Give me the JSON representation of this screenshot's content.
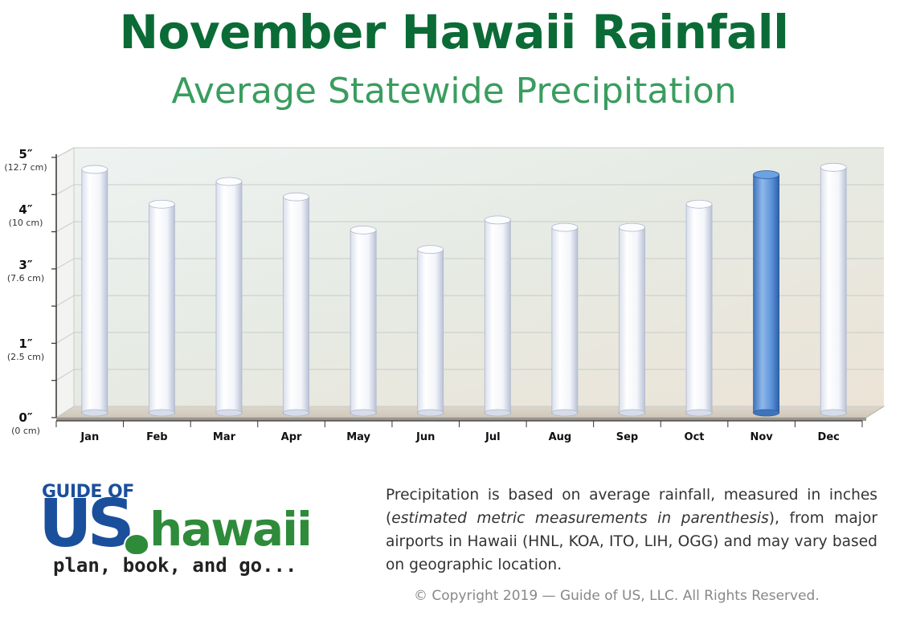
{
  "header": {
    "title": "November Hawaii Rainfall",
    "subtitle": "Average Statewide Precipitation"
  },
  "chart_data": {
    "type": "bar",
    "title": "November Hawaii Rainfall",
    "subtitle": "Average Statewide Precipitation",
    "categories": [
      "Jan",
      "Feb",
      "Mar",
      "Apr",
      "May",
      "Jun",
      "Jul",
      "Aug",
      "Sep",
      "Oct",
      "Nov",
      "Dec"
    ],
    "values": [
      4.62,
      3.96,
      4.39,
      4.1,
      3.47,
      3.1,
      3.66,
      3.52,
      3.52,
      3.96,
      4.52,
      4.66
    ],
    "highlight": "Nov",
    "highlight_color": "#4a86cf",
    "bar_color": "#f4f6fb",
    "ylim": [
      0,
      5
    ],
    "y_ticks": [
      {
        "value": 0,
        "label": "0″",
        "sublabel": "(0 cm)"
      },
      {
        "value": 1.4,
        "label": "1″",
        "sublabel": "(2.5 cm)"
      },
      {
        "value": 2.9,
        "label": "3″",
        "sublabel": "(7.6 cm)"
      },
      {
        "value": 3.95,
        "label": "4″",
        "sublabel": "(10 cm)"
      },
      {
        "value": 5,
        "label": "5″",
        "sublabel": "(12.7 cm)"
      }
    ],
    "grid": true
  },
  "logo": {
    "top": "GUIDE OF",
    "main_left": "US",
    "main_right": "hawaii",
    "tagline": "plan, book, and go..."
  },
  "description": {
    "part1": "Precipitation is based on average rainfall, measured in inches (",
    "italic": "estimated metric measurements in parenthesis",
    "part2": "), from major airports in Hawaii (HNL, KOA, ITO, LIH, OGG) and may vary based on geographic location."
  },
  "copyright": "© Copyright 2019 — Guide of US, LLC. All Rights Reserved."
}
